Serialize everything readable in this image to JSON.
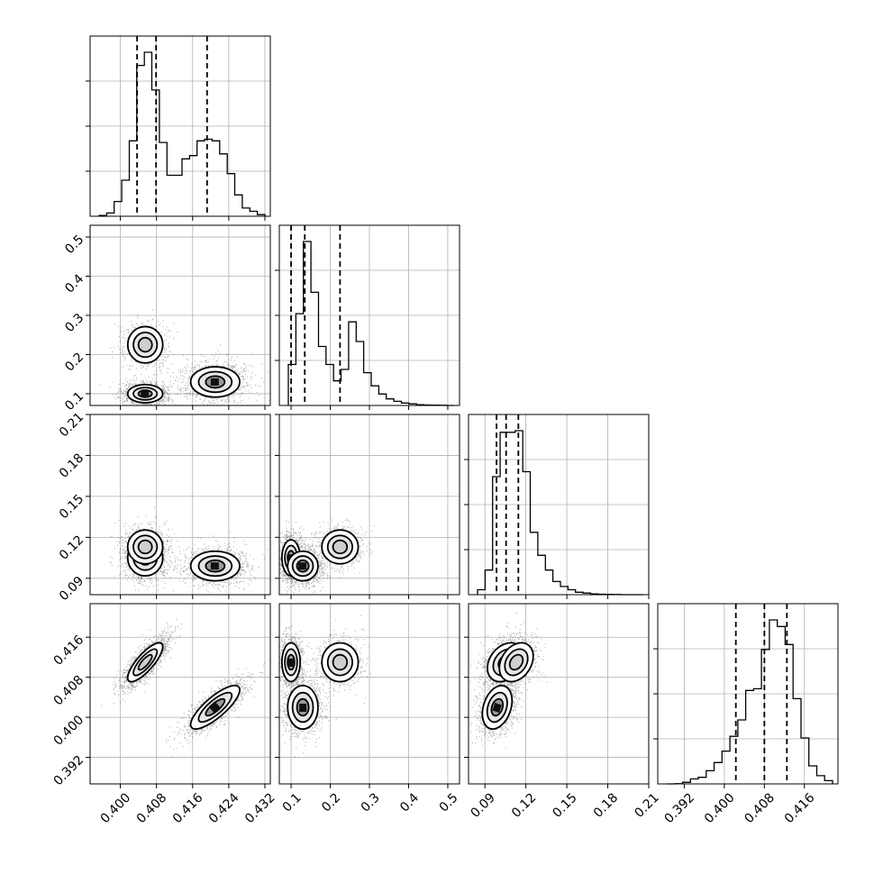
{
  "chart_data": {
    "type": "corner",
    "grid": true,
    "params": [
      {
        "range": [
          0.3933,
          0.4332
        ],
        "ticks": [
          0.4,
          0.408,
          0.416,
          0.424,
          0.432
        ],
        "tick_labels": [
          "0.400",
          "0.408",
          "0.416",
          "0.424",
          "0.432"
        ],
        "quantiles": [
          0.4037,
          0.4079,
          0.4192
        ]
      },
      {
        "range": [
          0.07,
          0.53
        ],
        "ticks": [
          0.1,
          0.2,
          0.3,
          0.4,
          0.5
        ],
        "tick_labels": [
          "0.1",
          "0.2",
          "0.3",
          "0.4",
          "0.5"
        ],
        "quantiles": [
          0.1,
          0.135,
          0.225
        ]
      },
      {
        "range": [
          0.078,
          0.21
        ],
        "ticks": [
          0.09,
          0.12,
          0.15,
          0.18,
          0.21
        ],
        "tick_labels": [
          "0.09",
          "0.12",
          "0.15",
          "0.18",
          "0.21"
        ],
        "quantiles": [
          0.0985,
          0.1055,
          0.1145
        ]
      },
      {
        "range": [
          0.3867,
          0.4227
        ],
        "ticks": [
          0.392,
          0.4,
          0.408,
          0.416
        ],
        "tick_labels": [
          "0.392",
          "0.400",
          "0.408",
          "0.416"
        ],
        "quantiles": [
          0.4023,
          0.408,
          0.4125
        ]
      }
    ],
    "histograms": [
      [
        0.005,
        0.02,
        0.09,
        0.22,
        0.46,
        0.92,
        1.0,
        0.77,
        0.45,
        0.25,
        0.25,
        0.35,
        0.37,
        0.46,
        0.47,
        0.46,
        0.38,
        0.26,
        0.13,
        0.05,
        0.03,
        0.01
      ],
      [
        0.25,
        0.56,
        1.0,
        0.69,
        0.36,
        0.25,
        0.15,
        0.22,
        0.51,
        0.39,
        0.2,
        0.12,
        0.07,
        0.04,
        0.025,
        0.015,
        0.01,
        0.005,
        0.003,
        0.002,
        0.001,
        0.0
      ],
      [
        0.03,
        0.15,
        0.72,
        0.99,
        0.99,
        1.0,
        0.75,
        0.38,
        0.24,
        0.15,
        0.08,
        0.05,
        0.03,
        0.015,
        0.01,
        0.005,
        0.003,
        0.002,
        0.001,
        0.0,
        0.0,
        0.0
      ],
      [
        0.0,
        0.001,
        0.01,
        0.03,
        0.04,
        0.08,
        0.13,
        0.2,
        0.29,
        0.39,
        0.57,
        0.58,
        0.82,
        1.0,
        0.96,
        0.85,
        0.52,
        0.28,
        0.11,
        0.05,
        0.02
      ]
    ],
    "clusters": [
      {
        "mx": [
          0.4055,
          0.1,
          0.105,
          0.411
        ],
        "sx": [
          0.0025,
          0.015,
          0.0085,
          0.0025
        ],
        "w": 0.4
      },
      {
        "mx": [
          0.4055,
          0.225,
          0.113,
          0.411
        ],
        "sx": [
          0.0025,
          0.03,
          0.008,
          0.0025
        ],
        "w": 0.2
      },
      {
        "mx": [
          0.421,
          0.13,
          0.099,
          0.402
        ],
        "sx": [
          0.0035,
          0.025,
          0.007,
          0.0028
        ],
        "w": 0.4
      }
    ],
    "pair_correlations": {
      "0_3": 0.8,
      "2_3": 0.3
    }
  }
}
